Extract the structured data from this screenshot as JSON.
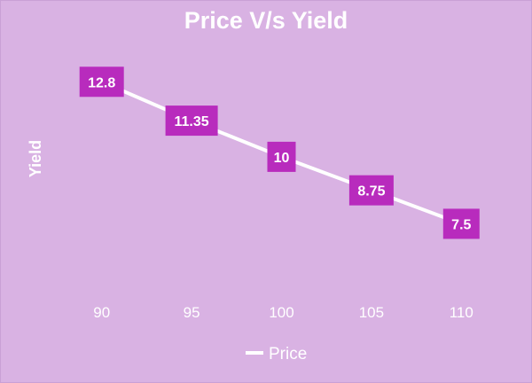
{
  "chart_data": {
    "type": "line",
    "title": "Price V/s Yield",
    "xlabel": "",
    "ylabel": "Yield",
    "categories": [
      "90",
      "95",
      "100",
      "105",
      "110"
    ],
    "series": [
      {
        "name": "Price",
        "values": [
          12.8,
          11.35,
          10,
          8.75,
          7.5
        ]
      }
    ],
    "data_labels": [
      "12.8",
      "11.35",
      "10",
      "8.75",
      "7.5"
    ],
    "ylim": [
      5,
      14
    ],
    "grid": false,
    "legend_position": "bottom",
    "colors": {
      "background": "#d9b2e3",
      "line": "#ffffff",
      "label_box": "#b82bbd",
      "text": "#ffffff"
    }
  }
}
